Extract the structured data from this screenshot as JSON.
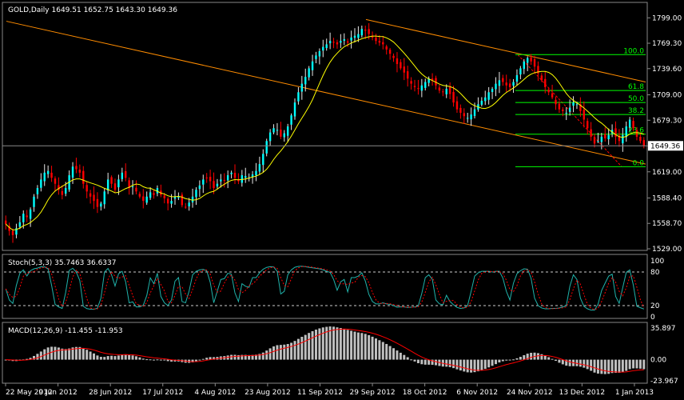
{
  "main": {
    "symbol": "GOLD",
    "period": "Daily",
    "title": "GOLD,Daily  1649.51 1652.75 1643.30 1649.36",
    "price_ticks": [
      "1799.00",
      "1769.30",
      "1739.60",
      "1709.00",
      "1679.30",
      "1649.30",
      "1619.00",
      "1588.40",
      "1558.70",
      "1529.00"
    ],
    "price_tick_values": [
      1799.0,
      1769.3,
      1739.6,
      1709.0,
      1679.3,
      1649.3,
      1619.0,
      1588.4,
      1558.7,
      1529.0
    ],
    "current_price": "1649.36",
    "current_price_value": 1649.36,
    "ylim": [
      1529,
      1803
    ],
    "fib_labels": [
      "100.0",
      "61.8",
      "50.0",
      "38.2",
      "23.6",
      "0.0"
    ],
    "fib_values": [
      1756,
      1714,
      1700,
      1686,
      1663,
      1625
    ]
  },
  "stoch": {
    "title": "Stoch(5,3,3) 35.7463 36.6337",
    "ticks": [
      "100",
      "80",
      "20",
      "0"
    ],
    "tick_values": [
      100,
      80,
      20,
      0
    ]
  },
  "macd": {
    "title": "MACD(12,26,9) -11.455 -11.953",
    "ticks": [
      "35.897",
      "0.00",
      "-23.967"
    ],
    "tick_values": [
      35.897,
      0,
      -23.967
    ]
  },
  "x_ticks": [
    "22 May 2012",
    "9 Jun 2012",
    "28 Jun 2012",
    "17 Jul 2012",
    "4 Aug 2012",
    "23 Aug 2012",
    "11 Sep 2012",
    "29 Sep 2012",
    "18 Oct 2012",
    "6 Nov 2012",
    "24 Nov 2012",
    "13 Dec 2012",
    "1 Jan 2013"
  ],
  "colors": {
    "background": "#000000",
    "up_candle": "#e8e8e8",
    "down_candle": "#ff0000",
    "bull_body": "#00ffff",
    "ma_line": "#ffff00",
    "channel": "#ff8c00",
    "fib": "#00ff00",
    "stoch_main": "#20b2aa",
    "stoch_signal": "#ff0000",
    "macd_hist": "#c0c0c0",
    "macd_signal": "#ff0000"
  },
  "chart_data": {
    "type": "candlestick",
    "title": "GOLD,Daily  1649.51 1652.75 1643.30 1649.36",
    "close": [
      1558,
      1550,
      1545,
      1553,
      1560,
      1570,
      1566,
      1575,
      1590,
      1600,
      1610,
      1618,
      1620,
      1612,
      1605,
      1598,
      1592,
      1600,
      1615,
      1625,
      1622,
      1618,
      1605,
      1596,
      1590,
      1585,
      1578,
      1582,
      1596,
      1610,
      1605,
      1598,
      1610,
      1618,
      1612,
      1600,
      1602,
      1596,
      1590,
      1585,
      1590,
      1595,
      1592,
      1600,
      1592,
      1588,
      1582,
      1585,
      1590,
      1590,
      1580,
      1578,
      1583,
      1590,
      1598,
      1603,
      1610,
      1612,
      1608,
      1600,
      1605,
      1610,
      1609,
      1615,
      1618,
      1612,
      1608,
      1615,
      1614,
      1612,
      1616,
      1620,
      1628,
      1640,
      1655,
      1665,
      1670,
      1668,
      1660,
      1664,
      1672,
      1685,
      1700,
      1712,
      1722,
      1730,
      1740,
      1748,
      1755,
      1760,
      1765,
      1768,
      1772,
      1770,
      1768,
      1772,
      1774,
      1770,
      1776,
      1778,
      1780,
      1786,
      1784,
      1780,
      1776,
      1772,
      1770,
      1768,
      1762,
      1757,
      1752,
      1745,
      1740,
      1735,
      1728,
      1722,
      1718,
      1716,
      1720,
      1724,
      1728,
      1726,
      1720,
      1714,
      1712,
      1716,
      1710,
      1700,
      1692,
      1688,
      1684,
      1682,
      1686,
      1692,
      1698,
      1702,
      1706,
      1712,
      1716,
      1722,
      1726,
      1724,
      1720,
      1718,
      1724,
      1732,
      1740,
      1748,
      1752,
      1748,
      1742,
      1734,
      1726,
      1718,
      1712,
      1706,
      1698,
      1692,
      1690,
      1688,
      1694,
      1700,
      1698,
      1690,
      1680,
      1670,
      1660,
      1652,
      1655,
      1660,
      1658,
      1662,
      1668,
      1660,
      1655,
      1662,
      1672,
      1680,
      1670,
      1660,
      1655,
      1649
    ]
  }
}
